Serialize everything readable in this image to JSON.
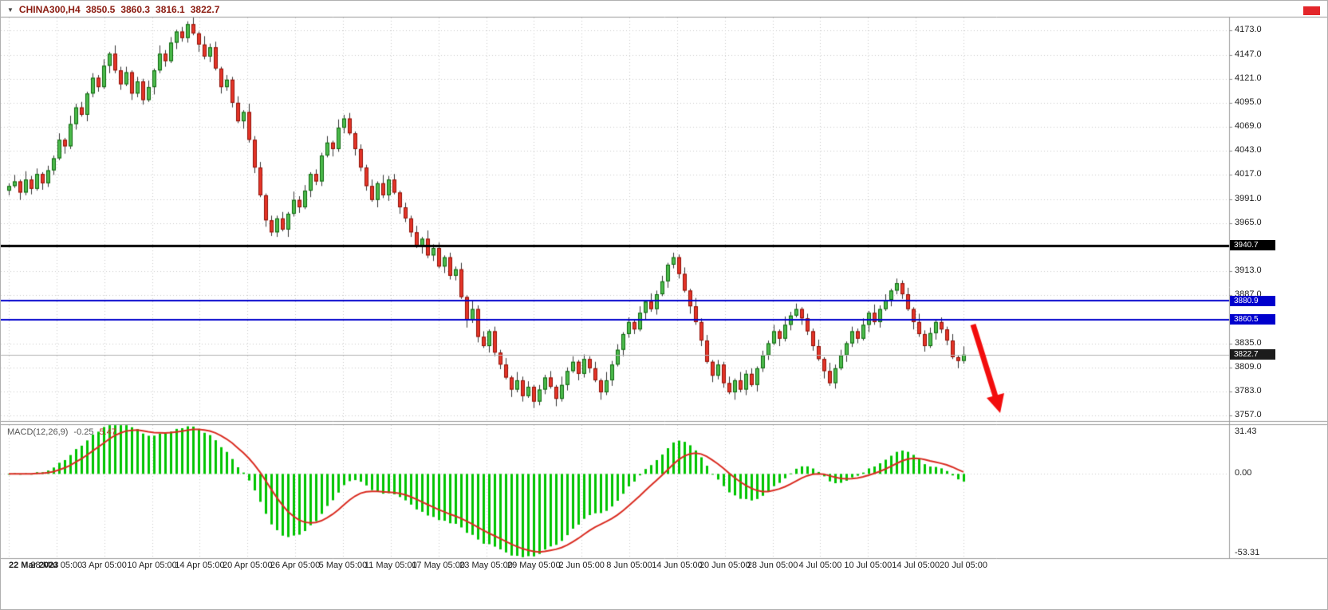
{
  "header": {
    "dropdown_icon": "▼",
    "symbol_tf": "CHINA300,H4",
    "open": "3850.5",
    "high": "3860.3",
    "low": "3816.1",
    "close": "3822.7"
  },
  "status_box": {
    "color": "#e3262a"
  },
  "chart_data": {
    "type": "candlestick",
    "symbol": "CHINA300",
    "timeframe": "H4",
    "title": "CHINA300,H4 3850.5 3860.3 3816.1 3822.7",
    "price_axis": {
      "tick_labels": [
        "4173.0",
        "4147.0",
        "4121.0",
        "4095.0",
        "4069.0",
        "4043.0",
        "4017.0",
        "3991.0",
        "3965.0",
        "3913.0",
        "3887.0",
        "3835.0",
        "3809.0",
        "3783.0",
        "3757.0"
      ],
      "tick_values": [
        4173,
        4147,
        4121,
        4095,
        4069,
        4043,
        4017,
        3991,
        3965,
        3913,
        3887,
        3835,
        3809,
        3783,
        3757
      ],
      "view_max": 4188,
      "view_min": 3751
    },
    "time_axis": {
      "tick_labels": [
        "22 Mar 2023",
        "28 Mar 05:00",
        "3 Apr 05:00",
        "10 Apr 05:00",
        "14 Apr 05:00",
        "20 Apr 05:00",
        "26 Apr 05:00",
        "5 May 05:00",
        "11 May 05:00",
        "17 May 05:00",
        "23 May 05:00",
        "29 May 05:00",
        "2 Jun 05:00",
        "8 Jun 05:00",
        "14 Jun 05:00",
        "20 Jun 05:00",
        "28 Jun 05:00",
        "4 Jul 05:00",
        "10 Jul 05:00",
        "14 Jul 05:00",
        "20 Jul 05:00"
      ]
    },
    "candles": {
      "first_open": 4000,
      "closes": [
        4005,
        4010,
        3998,
        4012,
        4002,
        4018,
        4008,
        4022,
        4035,
        4055,
        4048,
        4072,
        4090,
        4082,
        4105,
        4122,
        4112,
        4135,
        4148,
        4130,
        4115,
        4128,
        4105,
        4118,
        4098,
        4112,
        4130,
        4148,
        4140,
        4160,
        4172,
        4165,
        4180,
        4170,
        4158,
        4145,
        4155,
        4132,
        4112,
        4120,
        4095,
        4075,
        4085,
        4055,
        4025,
        3995,
        3968,
        3955,
        3970,
        3958,
        3975,
        3990,
        3982,
        4000,
        4018,
        4010,
        4038,
        4052,
        4045,
        4068,
        4078,
        4062,
        4045,
        4025,
        4005,
        3990,
        4008,
        3995,
        4012,
        3998,
        3982,
        3970,
        3955,
        3940,
        3948,
        3930,
        3938,
        3918,
        3928,
        3908,
        3915,
        3885,
        3860,
        3872,
        3842,
        3832,
        3848,
        3825,
        3812,
        3798,
        3785,
        3795,
        3778,
        3788,
        3772,
        3785,
        3798,
        3788,
        3775,
        3790,
        3805,
        3815,
        3802,
        3818,
        3808,
        3795,
        3782,
        3795,
        3812,
        3828,
        3845,
        3858,
        3850,
        3868,
        3880,
        3872,
        3888,
        3902,
        3920,
        3928,
        3910,
        3892,
        3875,
        3858,
        3838,
        3815,
        3800,
        3812,
        3792,
        3782,
        3795,
        3785,
        3802,
        3790,
        3808,
        3822,
        3835,
        3848,
        3840,
        3855,
        3865,
        3872,
        3862,
        3848,
        3832,
        3818,
        3805,
        3792,
        3808,
        3822,
        3835,
        3848,
        3840,
        3855,
        3868,
        3858,
        3872,
        3882,
        3892,
        3900,
        3888,
        3872,
        3858,
        3845,
        3832,
        3846,
        3858,
        3850,
        3838,
        3820,
        3816,
        3822.7
      ]
    },
    "levels": [
      {
        "value": 3940.7,
        "label": "3940.7",
        "line_color": "#000000",
        "tag_bg": "#000000",
        "line_width": 3
      },
      {
        "value": 3880.9,
        "label": "3880.9",
        "line_color": "#0000cd",
        "tag_bg": "#0000cd",
        "line_width": 2
      },
      {
        "value": 3860.5,
        "label": "3860.5",
        "line_color": "#0000cd",
        "tag_bg": "#0000cd",
        "line_width": 2
      }
    ],
    "current_price": {
      "value": 3822.7,
      "label": "3822.7",
      "line_color": "#b3b3b3",
      "tag_bg": "#1c1c1c"
    },
    "indicator_macd": {
      "label": "MACD(12,26,9)",
      "fast": 12,
      "slow": 26,
      "signal": 9,
      "value_label": "-0.25",
      "signal_value_label": "5.47",
      "axis_tick_labels": [
        "31.43",
        "0.00",
        "-53.31"
      ],
      "view_max": 31.43,
      "view_min": -53.31,
      "histogram_color": "#00c400",
      "signal_color": "#d92b20"
    },
    "annotation_arrow": {
      "direction": "down-right",
      "color": "#f20d0d"
    },
    "colors": {
      "bull_fill": "#4cbb4c",
      "bull_border": "#0c660c",
      "bear_fill": "#e53528",
      "bear_border": "#8f1007",
      "wick": "#333333",
      "grid": "#c9c9c9",
      "panel_border": "#9a9a9a"
    }
  }
}
